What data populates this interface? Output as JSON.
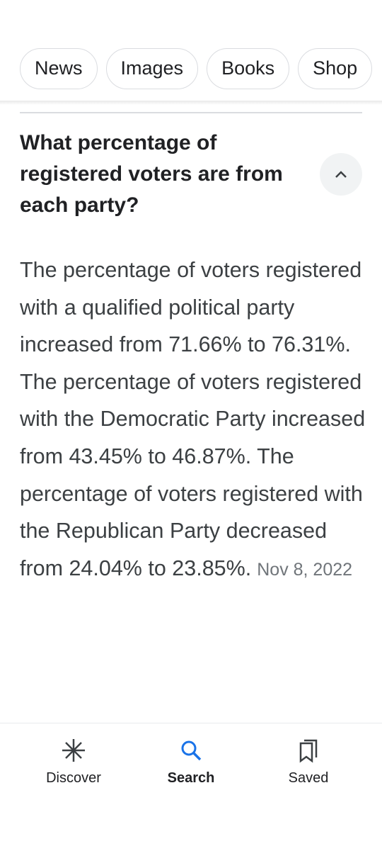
{
  "tabs": [
    "News",
    "Images",
    "Books",
    "Shop"
  ],
  "question": "What percentage of registered voters are from each party?",
  "answer": {
    "text": "The percentage of voters registered with a qualified political party increased from 71.66% to 76.31%. The percentage of voters registered with the Democratic Party increased from 43.45% to 46.87%. The percentage of voters registered with the Republican Party decreased from 24.04% to 23.85%.",
    "date": "Nov 8, 2022"
  },
  "nav": [
    "Discover",
    "Search",
    "Saved"
  ]
}
